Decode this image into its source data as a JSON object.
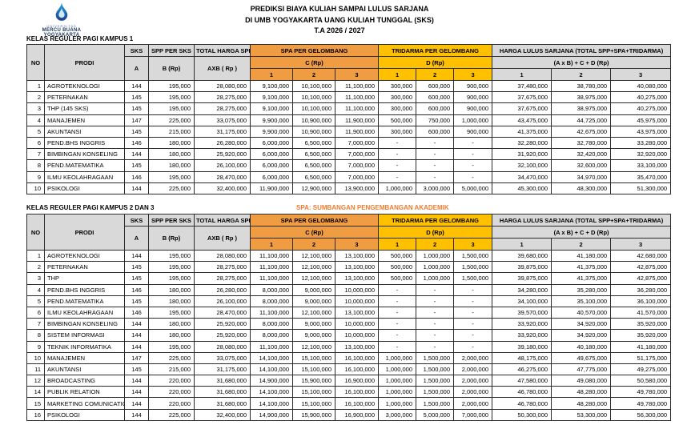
{
  "colors": {
    "spa_header": "#f09c42",
    "tridarma_header": "#ffc000",
    "grey_header": "#d9d9d9",
    "note_text": "#ed7d31",
    "logo_navy": "#1f3864",
    "logo_blue": "#29abe2"
  },
  "header": {
    "logo_org_line1": "UNIVERSITAS",
    "logo_org_line2": "MERCU BUANA",
    "logo_org_line3": "YOGYAKARTA",
    "title_line1": "PREDIKSI BIAYA KULIAH SAMPAI LULUS SARJANA",
    "title_line2": "DI UMB YOGYAKARTA UANG KULIAH TUNGGAL (SKS)",
    "title_line3": "T.A 2026 / 2027"
  },
  "columns": {
    "no": "NO",
    "prodi": "PRODI",
    "sks": "SKS",
    "sks_sub": "A",
    "spp_per_sks": "SPP PER SKS",
    "spp_sub": "B (Rp)",
    "total_harga_spp": "TOTAL HARGA SPP",
    "total_sub": "AXB ( Rp )",
    "spa_group": "SPA PER GELOMBANG",
    "spa_sub": "C (Rp)",
    "tridarma_group": "TRIDARMA PER GELOMBANG",
    "tridarma_sub": "D (Rp)",
    "harga_group": "HARGA LULUS SARJANA (TOTAL SPP+SPA+TRIDARMA)",
    "harga_sub": "(A x B) + C + D (Rp)",
    "wave_labels": [
      "1",
      "2",
      "3"
    ]
  },
  "table1": {
    "title": "KELAS REGULER PAGI KAMPUS 1",
    "rows": [
      {
        "no": "1",
        "prodi": "AGROTEKNOLOGI",
        "sks": "144",
        "spp": "195,000",
        "total": "28,080,000",
        "spa": [
          "9,100,000",
          "10,100,000",
          "11,100,000"
        ],
        "tridarma": [
          "300,000",
          "600,000",
          "900,000"
        ],
        "harga": [
          "37,480,000",
          "38,780,000",
          "40,080,000"
        ]
      },
      {
        "no": "2",
        "prodi": "PETERNAKAN",
        "sks": "145",
        "spp": "195,000",
        "total": "28,275,000",
        "spa": [
          "9,100,000",
          "10,100,000",
          "11,100,000"
        ],
        "tridarma": [
          "300,000",
          "600,000",
          "900,000"
        ],
        "harga": [
          "37,675,000",
          "38,975,000",
          "40,275,000"
        ]
      },
      {
        "no": "3",
        "prodi": "THP (145 SKS)",
        "sks": "145",
        "spp": "195,000",
        "total": "28,275,000",
        "spa": [
          "9,100,000",
          "10,100,000",
          "11,100,000"
        ],
        "tridarma": [
          "300,000",
          "600,000",
          "900,000"
        ],
        "harga": [
          "37,675,000",
          "38,975,000",
          "40,275,000"
        ]
      },
      {
        "no": "4",
        "prodi": "MANAJEMEN",
        "sks": "147",
        "spp": "225,000",
        "total": "33,075,000",
        "spa": [
          "9,900,000",
          "10,900,000",
          "11,900,000"
        ],
        "tridarma": [
          "500,000",
          "750,000",
          "1,000,000"
        ],
        "harga": [
          "43,475,000",
          "44,725,000",
          "45,975,000"
        ]
      },
      {
        "no": "5",
        "prodi": "AKUNTANSI",
        "sks": "145",
        "spp": "215,000",
        "total": "31,175,000",
        "spa": [
          "9,900,000",
          "10,900,000",
          "11,900,000"
        ],
        "tridarma": [
          "300,000",
          "600,000",
          "900,000"
        ],
        "harga": [
          "41,375,000",
          "42,675,000",
          "43,975,000"
        ]
      },
      {
        "no": "6",
        "prodi": "PEND.BHS INGGRIS",
        "sks": "146",
        "spp": "180,000",
        "total": "26,280,000",
        "spa": [
          "6,000,000",
          "6,500,000",
          "7,000,000"
        ],
        "tridarma": [
          "-",
          "-",
          "-"
        ],
        "harga": [
          "32,280,000",
          "32,780,000",
          "33,280,000"
        ]
      },
      {
        "no": "7",
        "prodi": "BIMBINGAN KONSELING",
        "sks": "144",
        "spp": "180,000",
        "total": "25,920,000",
        "spa": [
          "6,000,000",
          "6,500,000",
          "7,000,000"
        ],
        "tridarma": [
          "-",
          "-",
          "-"
        ],
        "harga": [
          "31,920,000",
          "32,420,000",
          "32,920,000"
        ]
      },
      {
        "no": "8",
        "prodi": "PEND.MATEMATIKA",
        "sks": "145",
        "spp": "180,000",
        "total": "26,100,000",
        "spa": [
          "6,000,000",
          "6,500,000",
          "7,000,000"
        ],
        "tridarma": [
          "-",
          "-",
          "-"
        ],
        "harga": [
          "32,100,000",
          "32,600,000",
          "33,100,000"
        ]
      },
      {
        "no": "9",
        "prodi": "ILMU KEOLAHRAGAAN",
        "sks": "146",
        "spp": "195,000",
        "total": "28,470,000",
        "spa": [
          "6,000,000",
          "6,500,000",
          "7,000,000"
        ],
        "tridarma": [
          "-",
          "-",
          "-"
        ],
        "harga": [
          "34,470,000",
          "34,970,000",
          "35,470,000"
        ]
      },
      {
        "no": "10",
        "prodi": "PSIKOLOGI",
        "sks": "144",
        "spp": "225,000",
        "total": "32,400,000",
        "spa": [
          "11,900,000",
          "12,900,000",
          "13,900,000"
        ],
        "tridarma": [
          "1,000,000",
          "3,000,000",
          "5,000,000"
        ],
        "harga": [
          "45,300,000",
          "48,300,000",
          "51,300,000"
        ]
      }
    ]
  },
  "table2": {
    "title": "KELAS REGULER PAGI KAMPUS 2 DAN 3",
    "note": "SPA: SUMBANGAN PENGEMBANGAN AKADEMIK",
    "rows": [
      {
        "no": "1",
        "prodi": "AGROTEKNOLOGI",
        "sks": "144",
        "spp": "195,000",
        "total": "28,080,000",
        "spa": [
          "11,100,000",
          "12,100,000",
          "13,100,000"
        ],
        "tridarma": [
          "500,000",
          "1,000,000",
          "1,500,000"
        ],
        "harga": [
          "39,680,000",
          "41,180,000",
          "42,680,000"
        ]
      },
      {
        "no": "2",
        "prodi": "PETERNAKAN",
        "sks": "145",
        "spp": "195,000",
        "total": "28,275,000",
        "spa": [
          "11,100,000",
          "12,100,000",
          "13,100,000"
        ],
        "tridarma": [
          "500,000",
          "1,000,000",
          "1,500,000"
        ],
        "harga": [
          "39,875,000",
          "41,375,000",
          "42,875,000"
        ]
      },
      {
        "no": "3",
        "prodi": "THP",
        "sks": "145",
        "spp": "195,000",
        "total": "28,275,000",
        "spa": [
          "11,100,000",
          "12,100,000",
          "13,100,000"
        ],
        "tridarma": [
          "500,000",
          "1,000,000",
          "1,500,000"
        ],
        "harga": [
          "39,875,000",
          "41,375,000",
          "42,875,000"
        ]
      },
      {
        "no": "4",
        "prodi": "PEND.BHS INGGRIS",
        "sks": "146",
        "spp": "180,000",
        "total": "26,280,000",
        "spa": [
          "8,000,000",
          "9,000,000",
          "10,000,000"
        ],
        "tridarma": [
          "-",
          "-",
          "-"
        ],
        "harga": [
          "34,280,000",
          "35,280,000",
          "36,280,000"
        ]
      },
      {
        "no": "5",
        "prodi": "PEND.MATEMATIKA",
        "sks": "145",
        "spp": "180,000",
        "total": "26,100,000",
        "spa": [
          "8,000,000",
          "9,000,000",
          "10,000,000"
        ],
        "tridarma": [
          "-",
          "-",
          "-"
        ],
        "harga": [
          "34,100,000",
          "35,100,000",
          "36,100,000"
        ]
      },
      {
        "no": "6",
        "prodi": "ILMU KEOLAHRAGAAN",
        "sks": "146",
        "spp": "195,000",
        "total": "28,470,000",
        "spa": [
          "11,100,000",
          "12,100,000",
          "13,100,000"
        ],
        "tridarma": [
          "-",
          "-",
          "-"
        ],
        "harga": [
          "39,570,000",
          "40,570,000",
          "41,570,000"
        ]
      },
      {
        "no": "7",
        "prodi": "BIMBINGAN KONSELING",
        "sks": "144",
        "spp": "180,000",
        "total": "25,920,000",
        "spa": [
          "8,000,000",
          "9,000,000",
          "10,000,000"
        ],
        "tridarma": [
          "-",
          "-",
          "-"
        ],
        "harga": [
          "33,920,000",
          "34,920,000",
          "35,920,000"
        ]
      },
      {
        "no": "8",
        "prodi": "SISTEM INFORMASI",
        "sks": "144",
        "spp": "180,000",
        "total": "25,920,000",
        "spa": [
          "8,000,000",
          "9,000,000",
          "10,000,000"
        ],
        "tridarma": [
          "-",
          "-",
          "-"
        ],
        "harga": [
          "33,920,000",
          "34,920,000",
          "35,920,000"
        ]
      },
      {
        "no": "9",
        "prodi": "TEKNIK INFORMATIKA",
        "sks": "144",
        "spp": "195,000",
        "total": "28,080,000",
        "spa": [
          "11,100,000",
          "12,100,000",
          "13,100,000"
        ],
        "tridarma": [
          "-",
          "-",
          "-"
        ],
        "harga": [
          "39,180,000",
          "40,180,000",
          "41,180,000"
        ]
      },
      {
        "no": "10",
        "prodi": "MANAJEMEN",
        "sks": "147",
        "spp": "225,000",
        "total": "33,075,000",
        "spa": [
          "14,100,000",
          "15,100,000",
          "16,100,000"
        ],
        "tridarma": [
          "1,000,000",
          "1,500,000",
          "2,000,000"
        ],
        "harga": [
          "48,175,000",
          "49,675,000",
          "51,175,000"
        ]
      },
      {
        "no": "11",
        "prodi": "AKUNTANSI",
        "sks": "145",
        "spp": "215,000",
        "total": "31,175,000",
        "spa": [
          "14,100,000",
          "15,100,000",
          "16,100,000"
        ],
        "tridarma": [
          "1,000,000",
          "1,500,000",
          "2,000,000"
        ],
        "harga": [
          "46,275,000",
          "47,775,000",
          "49,275,000"
        ]
      },
      {
        "no": "12",
        "prodi": "BROADCASTING",
        "sks": "144",
        "spp": "220,000",
        "total": "31,680,000",
        "spa": [
          "14,900,000",
          "15,900,000",
          "16,900,000"
        ],
        "tridarma": [
          "1,000,000",
          "1,500,000",
          "2,000,000"
        ],
        "harga": [
          "47,580,000",
          "49,080,000",
          "50,580,000"
        ]
      },
      {
        "no": "14",
        "prodi": "PUBLIK RELATION",
        "sks": "144",
        "spp": "220,000",
        "total": "31,680,000",
        "spa": [
          "14,100,000",
          "15,100,000",
          "16,100,000"
        ],
        "tridarma": [
          "1,000,000",
          "1,500,000",
          "2,000,000"
        ],
        "harga": [
          "46,780,000",
          "48,280,000",
          "49,780,000"
        ]
      },
      {
        "no": "15",
        "prodi": "MARKETING COMUNICATION",
        "sks": "144",
        "spp": "220,000",
        "total": "31,680,000",
        "spa": [
          "14,100,000",
          "15,100,000",
          "16,100,000"
        ],
        "tridarma": [
          "1,000,000",
          "1,500,000",
          "2,000,000"
        ],
        "harga": [
          "46,780,000",
          "48,280,000",
          "49,780,000"
        ]
      },
      {
        "no": "16",
        "prodi": "PSIKOLOGI",
        "sks": "144",
        "spp": "225,000",
        "total": "32,400,000",
        "spa": [
          "14,900,000",
          "15,900,000",
          "16,900,000"
        ],
        "tridarma": [
          "3,000,000",
          "5,000,000",
          "7,000,000"
        ],
        "harga": [
          "50,300,000",
          "53,300,000",
          "56,300,000"
        ]
      }
    ]
  }
}
